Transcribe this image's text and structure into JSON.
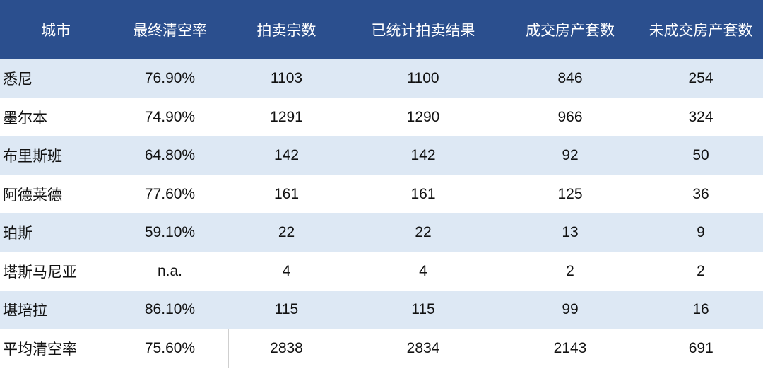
{
  "headers": [
    "城市",
    "最终清空率",
    "拍卖宗数",
    "已统计拍卖结果",
    "成交房产套数",
    "未成交房产套数"
  ],
  "rows": [
    [
      "悉尼",
      "76.90%",
      "1103",
      "1100",
      "846",
      "254"
    ],
    [
      "墨尔本",
      "74.90%",
      "1291",
      "1290",
      "966",
      "324"
    ],
    [
      "布里斯班",
      "64.80%",
      "142",
      "142",
      "92",
      "50"
    ],
    [
      "阿德莱德",
      "77.60%",
      "161",
      "161",
      "125",
      "36"
    ],
    [
      "珀斯",
      "59.10%",
      "22",
      "22",
      "13",
      "9"
    ],
    [
      "塔斯马尼亚",
      "n.a.",
      "4",
      "4",
      "2",
      "2"
    ],
    [
      "堪培拉",
      "86.10%",
      "115",
      "115",
      "99",
      "16"
    ]
  ],
  "total": [
    "平均清空率",
    "75.60%",
    "2838",
    "2834",
    "2143",
    "691"
  ],
  "colors": {
    "header_bg": "#2b4f8e",
    "stripe_bg": "#dde8f4"
  }
}
